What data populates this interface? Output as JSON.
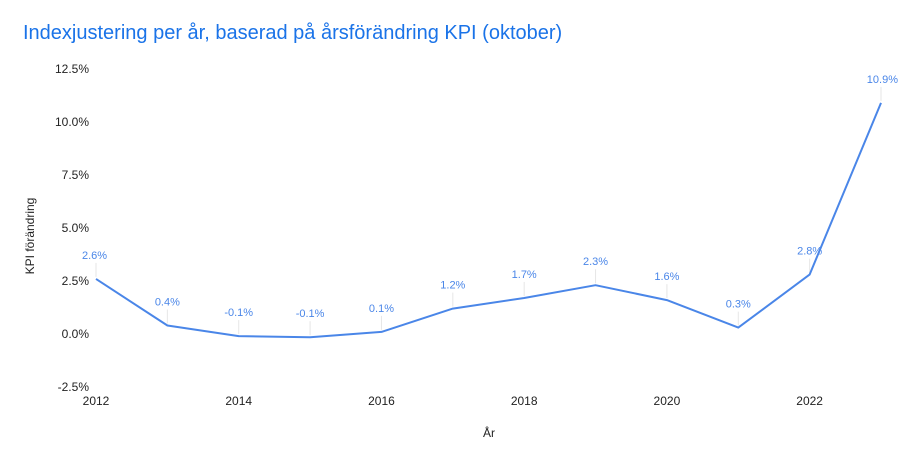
{
  "chart_data": {
    "type": "line",
    "title": "Indexjustering per år, baserad på årsförändring KPI (oktober)",
    "xlabel": "År",
    "ylabel": "KPI förändring",
    "x": [
      2012,
      2013,
      2014,
      2015,
      2016,
      2017,
      2018,
      2019,
      2020,
      2021,
      2022,
      2023
    ],
    "x_ticks": [
      "2012",
      "2014",
      "2016",
      "2018",
      "2020",
      "2022"
    ],
    "xlim": [
      2012,
      2023
    ],
    "ylim": [
      -2.5,
      12.5
    ],
    "y_ticks": [
      "-2.5%",
      "0.0%",
      "2.5%",
      "5.0%",
      "7.5%",
      "10.0%",
      "12.5%"
    ],
    "grid": false,
    "legend": "none",
    "series": [
      {
        "values": [
          2.6,
          0.4,
          -0.1,
          -0.15,
          0.1,
          1.2,
          1.7,
          2.3,
          1.6,
          0.3,
          2.8,
          10.9
        ],
        "labels": [
          "2.6%",
          "0.4%",
          "-0.1%",
          "-0.1%",
          "0.1%",
          "1.2%",
          "1.7%",
          "2.3%",
          "1.6%",
          "0.3%",
          "2.8%",
          "10.9%"
        ],
        "color": "#4a86e8"
      }
    ]
  }
}
